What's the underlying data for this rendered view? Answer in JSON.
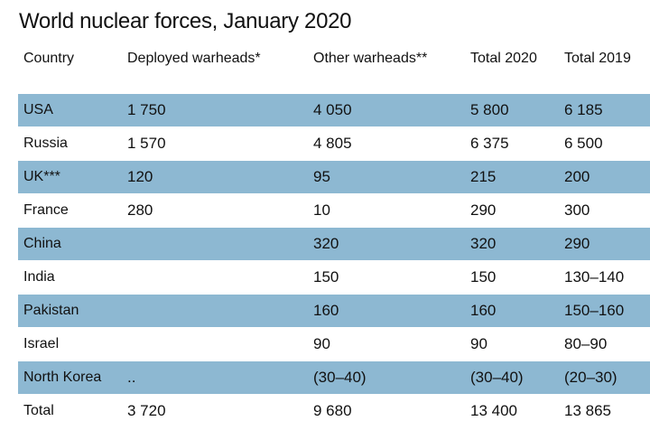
{
  "title": "World nuclear forces, January 2020",
  "colors": {
    "shaded_row": "#8db8d2",
    "background": "#ffffff",
    "text": "#111111"
  },
  "chart_data": {
    "type": "table",
    "title": "World nuclear forces, January 2020",
    "columns": [
      "Country",
      "Deployed warheads*",
      "Other warheads**",
      "Total 2020",
      "Total 2019"
    ],
    "rows": [
      [
        "USA",
        "1 750",
        "4 050",
        "5 800",
        "6 185"
      ],
      [
        "Russia",
        "1 570",
        "4 805",
        "6 375",
        "6 500"
      ],
      [
        "UK***",
        "120",
        "95",
        "215",
        "200"
      ],
      [
        "France",
        "280",
        "10",
        "290",
        "300"
      ],
      [
        "China",
        "",
        "320",
        "320",
        "290"
      ],
      [
        "India",
        "",
        "150",
        "150",
        "130–140"
      ],
      [
        "Pakistan",
        "",
        "160",
        "160",
        "150–160"
      ],
      [
        "Israel",
        "",
        "90",
        "90",
        "80–90"
      ],
      [
        "North Korea",
        "..",
        "(30–40)",
        "(30–40)",
        "(20–30)"
      ],
      [
        "Total",
        "3 720",
        "9 680",
        "13 400",
        "13 865"
      ]
    ]
  }
}
